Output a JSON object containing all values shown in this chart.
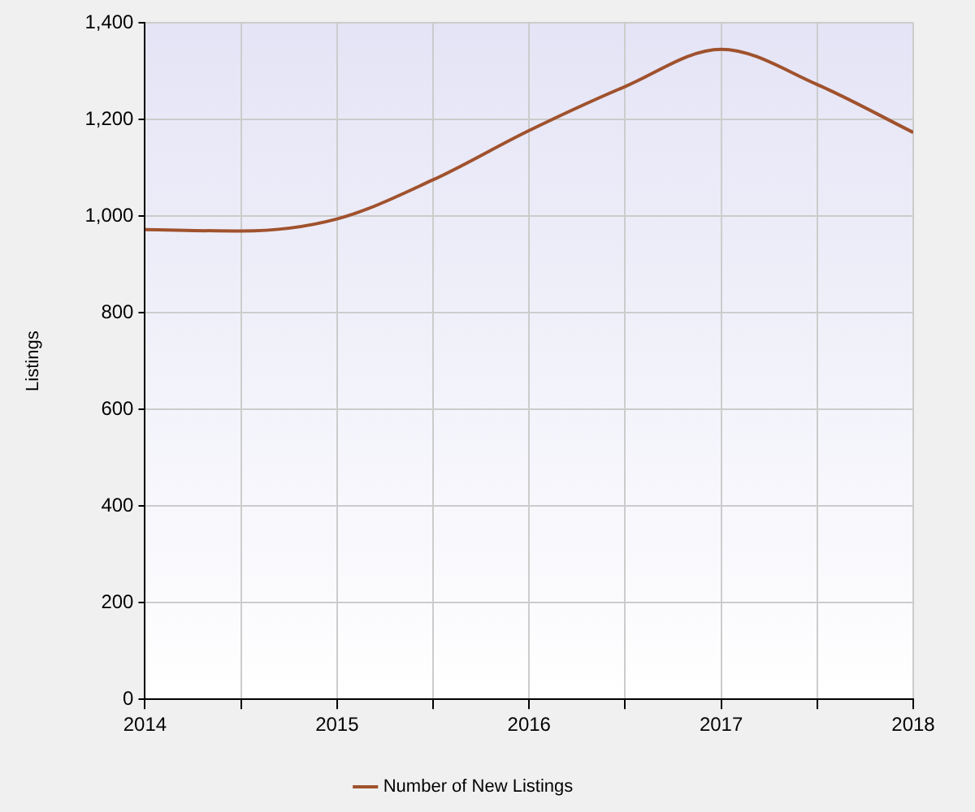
{
  "chart_data": {
    "type": "line",
    "ylabel": "Listings",
    "x": [
      2014,
      2014.5,
      2015,
      2015.5,
      2016,
      2016.5,
      2017,
      2017.5,
      2018
    ],
    "series": [
      {
        "name": "Number of New Listings",
        "color": "#a0522d",
        "values": [
          972,
          969,
          994,
          1075,
          1177,
          1268,
          1345,
          1272,
          1173
        ]
      }
    ],
    "xlim": [
      2014,
      2018
    ],
    "xticks": [
      2014,
      {
        "value": 2014.5,
        "label": null
      },
      2015,
      {
        "value": 2015.5,
        "label": null
      },
      2016,
      {
        "value": 2016.5,
        "label": null
      },
      2017,
      {
        "value": 2017.5,
        "label": null
      },
      2018
    ],
    "ylim": [
      0,
      1400
    ],
    "yticks": [
      0,
      200,
      400,
      600,
      800,
      {
        "value": 1000,
        "label": "1,000"
      },
      {
        "value": 1200,
        "label": "1,200"
      },
      {
        "value": 1400,
        "label": "1,400"
      }
    ],
    "grid": true,
    "legend": "bottom",
    "marker": "none",
    "line_style": "solid"
  }
}
